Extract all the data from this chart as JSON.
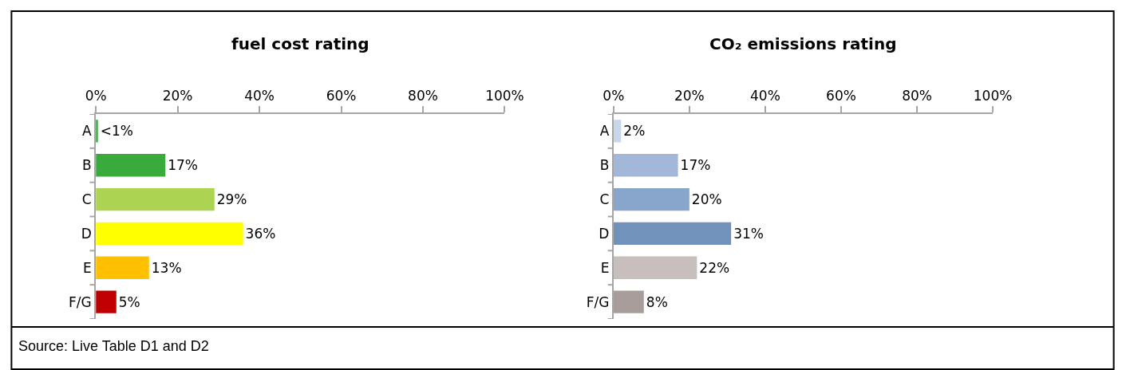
{
  "chart_data": [
    {
      "type": "bar",
      "orientation": "horizontal",
      "title": "fuel cost rating",
      "categories": [
        "A",
        "B",
        "C",
        "D",
        "E",
        "F/G"
      ],
      "values": [
        0.5,
        17,
        29,
        36,
        13,
        5
      ],
      "value_labels": [
        "<1%",
        "17%",
        "29%",
        "36%",
        "13%",
        "5%"
      ],
      "colors": [
        "#3aaa3c",
        "#3aaa3c",
        "#acd452",
        "#ffff00",
        "#ffc000",
        "#c00000"
      ],
      "xlim": [
        0,
        100
      ],
      "xticks": [
        {
          "value": 0,
          "label": "0%"
        },
        {
          "value": 20,
          "label": "20%"
        },
        {
          "value": 40,
          "label": "40%"
        },
        {
          "value": 60,
          "label": "60%"
        },
        {
          "value": 80,
          "label": "80%"
        },
        {
          "value": 100,
          "label": "100%"
        }
      ],
      "grid": false
    },
    {
      "type": "bar",
      "orientation": "horizontal",
      "title": "CO₂ emissions rating",
      "categories": [
        "A",
        "B",
        "C",
        "D",
        "E",
        "F/G"
      ],
      "values": [
        2,
        17,
        20,
        31,
        22,
        8
      ],
      "value_labels": [
        "2%",
        "17%",
        "20%",
        "31%",
        "22%",
        "8%"
      ],
      "colors": [
        "#c9d7ec",
        "#a3b7d9",
        "#88a5cb",
        "#7192bb",
        "#c8bfbc",
        "#a99d9c"
      ],
      "xlim": [
        0,
        100
      ],
      "xticks": [
        {
          "value": 0,
          "label": "0%"
        },
        {
          "value": 20,
          "label": "20%"
        },
        {
          "value": 40,
          "label": "40%"
        },
        {
          "value": 60,
          "label": "60%"
        },
        {
          "value": 80,
          "label": "80%"
        },
        {
          "value": 100,
          "label": "100%"
        }
      ],
      "grid": false,
      "annotations": [
        "Source: Live Table D1 and D2"
      ]
    }
  ]
}
